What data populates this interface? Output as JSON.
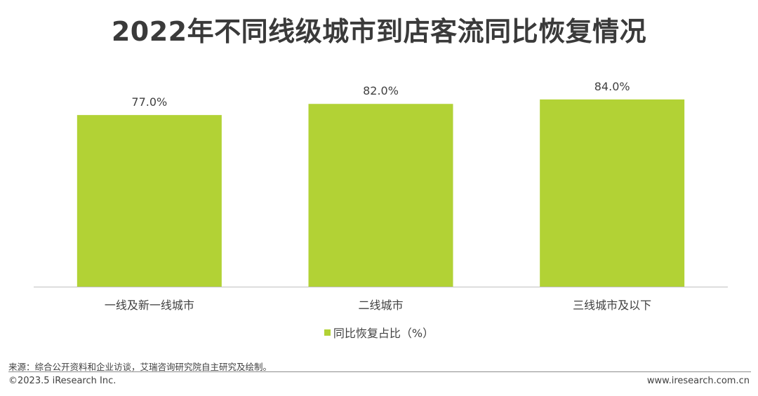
{
  "title": "2022年不同线级城市到店客流同比恢复情况",
  "legend_label": "同比恢复占比（%）",
  "source": "来源：综合公开资料和企业访谈，艾瑞咨询研究院自主研究及绘制。",
  "copyright": "©2023.5 iResearch Inc.",
  "website": "www.iresearch.com.cn",
  "colors": {
    "bar": "#b2d235",
    "axis": "#bfbfbf"
  },
  "chart_data": {
    "type": "bar",
    "categories": [
      "一线及新一线城市",
      "二线城市",
      "三线城市及以下"
    ],
    "series": [
      {
        "name": "同比恢复占比（%）",
        "values": [
          77.0,
          82.0,
          84.0
        ]
      }
    ],
    "data_labels": [
      "77.0%",
      "82.0%",
      "84.0%"
    ],
    "ylim": [
      0,
      100
    ],
    "grid": false,
    "legend": "bottom"
  }
}
